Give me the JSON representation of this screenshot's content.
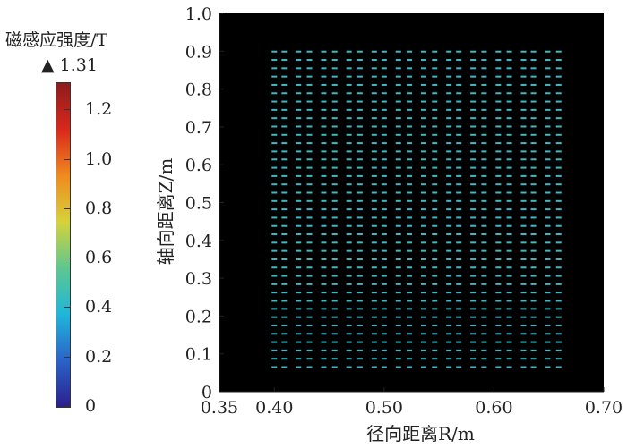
{
  "colorbar": {
    "title": "磁感应强度/T",
    "max_marker": "▲ 1.31",
    "ticks": [
      "1.2",
      "1.0",
      "0.8",
      "0.6",
      "0.4",
      "0.2",
      "0"
    ],
    "tick_values": [
      1.2,
      1.0,
      0.8,
      0.6,
      0.4,
      0.2,
      0
    ],
    "range": [
      0,
      1.31
    ],
    "colors": [
      "#2b1f8c",
      "#2a63c9",
      "#1fb6d9",
      "#5ec78f",
      "#d6d23a",
      "#f08a1e",
      "#d9281c",
      "#8c1c1c"
    ]
  },
  "chart_data": {
    "type": "scatter",
    "title": "",
    "xlabel": "径向距离R/m",
    "ylabel": "轴向距离Z/m",
    "xlim": [
      0.35,
      0.7
    ],
    "ylim": [
      0,
      1.0
    ],
    "x_ticks": [
      "0.35",
      "0.40",
      "0.50",
      "0.60",
      "0.70"
    ],
    "x_tick_values": [
      0.35,
      0.4,
      0.5,
      0.6,
      0.7
    ],
    "y_ticks": [
      "0",
      "0.1",
      "0.2",
      "0.3",
      "0.4",
      "0.5",
      "0.6",
      "0.7",
      "0.8",
      "0.9",
      "1.0"
    ],
    "y_tick_values": [
      0,
      0.1,
      0.2,
      0.3,
      0.4,
      0.5,
      0.6,
      0.7,
      0.8,
      0.9,
      1.0
    ],
    "background_color": "#000000",
    "marker_color": "#3fb9c4",
    "column_pairs_x": [
      [
        0.4,
        0.409
      ],
      [
        0.422,
        0.432
      ],
      [
        0.445,
        0.455
      ],
      [
        0.468,
        0.478
      ],
      [
        0.491,
        0.5
      ],
      [
        0.513,
        0.523
      ],
      [
        0.536,
        0.546
      ],
      [
        0.559,
        0.568
      ],
      [
        0.581,
        0.591
      ],
      [
        0.604,
        0.614
      ],
      [
        0.627,
        0.636
      ],
      [
        0.649,
        0.659
      ]
    ],
    "rows_y": [
      0.065,
      0.087,
      0.109,
      0.131,
      0.153,
      0.175,
      0.197,
      0.219,
      0.24,
      0.262,
      0.284,
      0.306,
      0.328,
      0.35,
      0.372,
      0.394,
      0.416,
      0.438,
      0.46,
      0.482,
      0.504,
      0.526,
      0.548,
      0.57,
      0.592,
      0.614,
      0.635,
      0.657,
      0.679,
      0.701,
      0.723,
      0.745,
      0.767,
      0.789,
      0.811,
      0.833,
      0.855,
      0.877,
      0.899
    ],
    "field_value_T": 0.45
  }
}
